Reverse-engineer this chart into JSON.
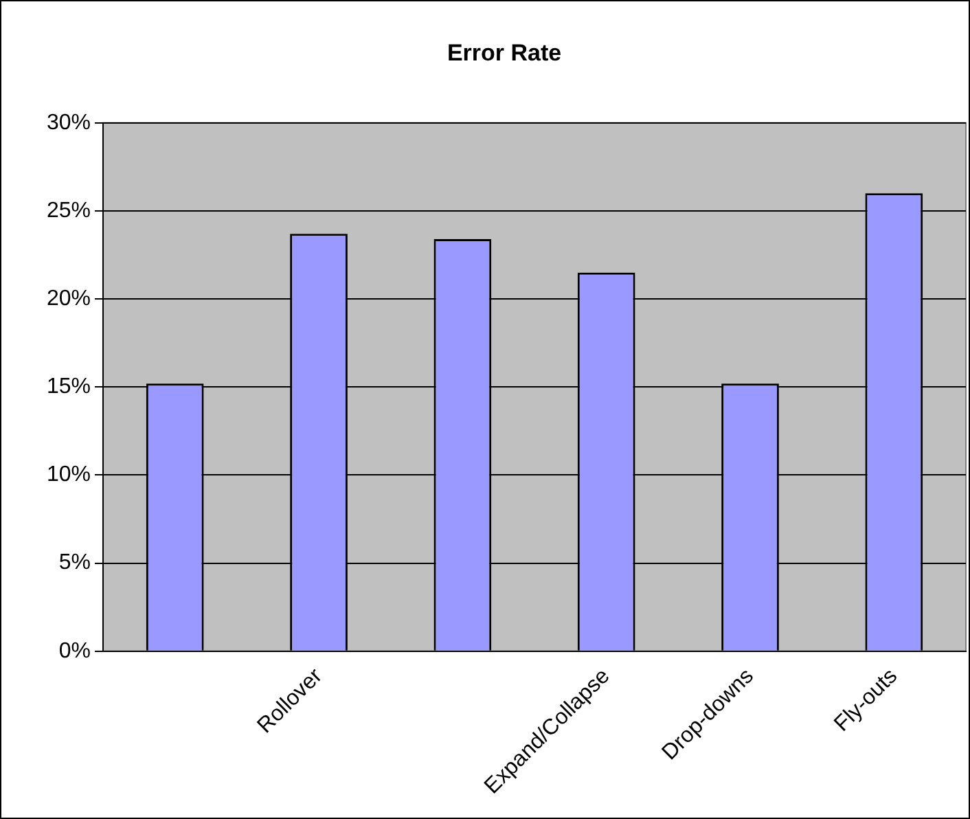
{
  "chart_data": {
    "type": "bar",
    "title": "Error Rate",
    "categories": [
      null,
      "Rollover",
      null,
      "Expand/Collapse",
      "Drop-downs",
      "Fly-outs"
    ],
    "values": [
      15.2,
      23.7,
      23.4,
      21.5,
      15.2,
      26.0
    ],
    "color": "#9999ff",
    "ylim": [
      0,
      30
    ],
    "yticks": [
      {
        "value": 0,
        "label": "0%"
      },
      {
        "value": 5,
        "label": "5%"
      },
      {
        "value": 10,
        "label": "10%"
      },
      {
        "value": 15,
        "label": "15%"
      },
      {
        "value": 20,
        "label": "20%"
      },
      {
        "value": 25,
        "label": "25%"
      },
      {
        "value": 30,
        "label": "30%"
      }
    ],
    "grid": "y",
    "legend": false
  }
}
